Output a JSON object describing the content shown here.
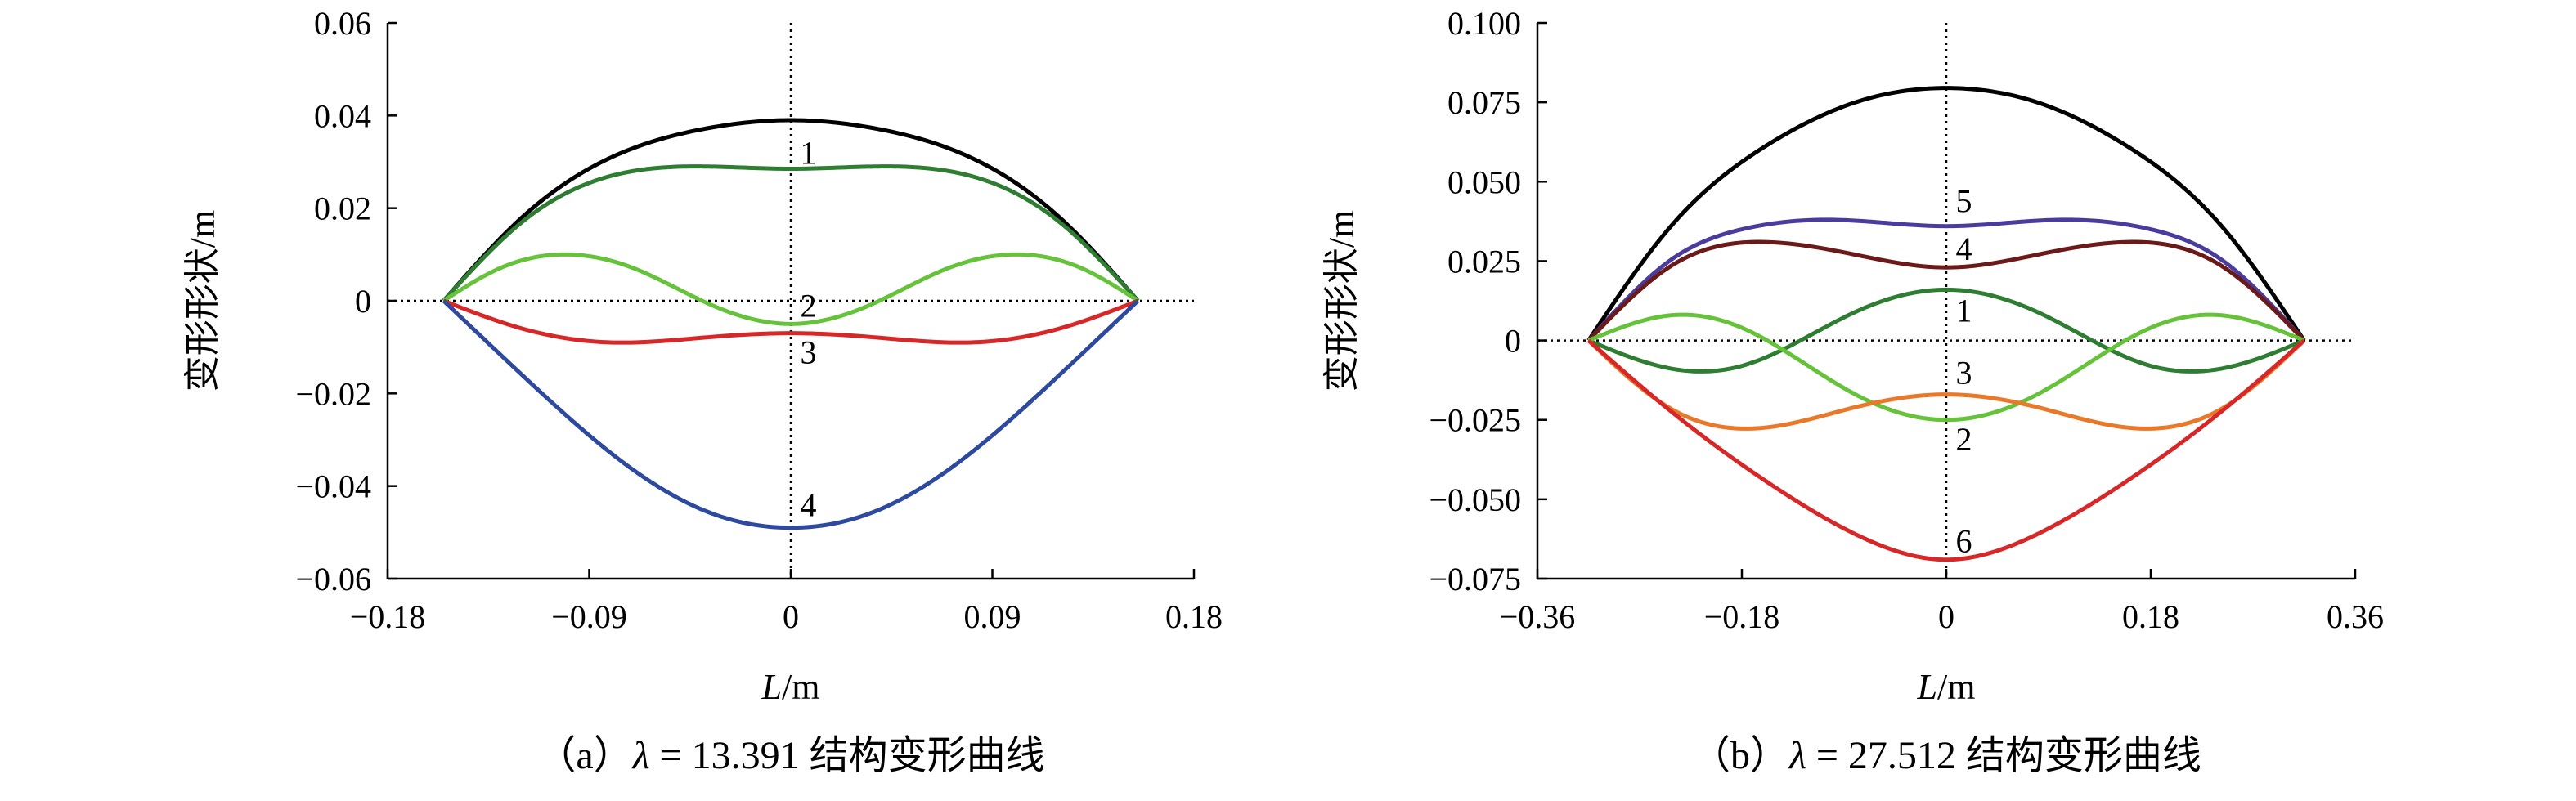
{
  "chart_data": [
    {
      "type": "line",
      "title": "",
      "xlabel": "L/m",
      "xlabel_italic": "L",
      "xlabel_unit": "/m",
      "ylabel": "变形形状/m",
      "caption_prefix": "（a）",
      "caption_lambda": "λ",
      "caption_value": " = 13.391 结构变形曲线",
      "xlim": [
        -0.18,
        0.18
      ],
      "ylim": [
        -0.06,
        0.06
      ],
      "xticks": [
        -0.18,
        -0.09,
        0,
        0.09,
        0.18
      ],
      "xtick_labels": [
        "−0.18",
        "−0.09",
        "0",
        "0.09",
        "0.18"
      ],
      "yticks": [
        0.06,
        0.04,
        0.02,
        0,
        -0.02,
        -0.04,
        -0.06
      ],
      "ytick_labels": [
        "0.06",
        "0.04",
        "0.02",
        "0",
        "−0.02",
        "−0.04",
        "−0.06"
      ],
      "x_span": [
        -0.155,
        0.155
      ],
      "series": [
        {
          "label": "",
          "color": "#000000",
          "x": [
            -0.155,
            -0.12,
            -0.08,
            -0.04,
            0,
            0.04,
            0.08,
            0.12,
            0.155
          ],
          "y": [
            0,
            0.018,
            0.031,
            0.037,
            0.039,
            0.037,
            0.031,
            0.018,
            0
          ]
        },
        {
          "label": "1",
          "color": "#2e7d32",
          "x": [
            -0.155,
            -0.12,
            -0.08,
            -0.04,
            0,
            0.04,
            0.08,
            0.12,
            0.155
          ],
          "y": [
            0,
            0.017,
            0.027,
            0.029,
            0.0285,
            0.029,
            0.027,
            0.017,
            0
          ]
        },
        {
          "label": "2",
          "color": "#66c23a",
          "x": [
            -0.155,
            -0.13,
            -0.1,
            -0.07,
            -0.035,
            0,
            0.035,
            0.07,
            0.1,
            0.13,
            0.155
          ],
          "y": [
            0,
            0.007,
            0.01,
            0.007,
            -0.001,
            -0.005,
            -0.001,
            0.007,
            0.01,
            0.007,
            0
          ]
        },
        {
          "label": "3",
          "color": "#d62828",
          "x": [
            -0.155,
            -0.12,
            -0.08,
            -0.04,
            0,
            0.04,
            0.08,
            0.12,
            0.155
          ],
          "y": [
            0,
            -0.006,
            -0.009,
            -0.008,
            -0.007,
            -0.008,
            -0.009,
            -0.006,
            0
          ]
        },
        {
          "label": "4",
          "color": "#2e4a9e",
          "x": [
            -0.155,
            -0.12,
            -0.08,
            -0.04,
            0,
            0.04,
            0.08,
            0.12,
            0.155
          ],
          "y": [
            0,
            -0.016,
            -0.033,
            -0.045,
            -0.049,
            -0.045,
            -0.033,
            -0.016,
            0
          ]
        }
      ],
      "curve_labels": [
        {
          "text": "1",
          "x": 0.002,
          "y": 0.032
        },
        {
          "text": "2",
          "x": 0.002,
          "y": -0.001
        },
        {
          "text": "3",
          "x": 0.002,
          "y": -0.011
        },
        {
          "text": "4",
          "x": 0.002,
          "y": -0.044
        }
      ]
    },
    {
      "type": "line",
      "title": "",
      "xlabel": "L/m",
      "xlabel_italic": "L",
      "xlabel_unit": "/m",
      "ylabel": "变形形状/m",
      "caption_prefix": "（b）",
      "caption_lambda": "λ",
      "caption_value": " = 27.512 结构变形曲线",
      "xlim": [
        -0.36,
        0.36
      ],
      "ylim": [
        -0.075,
        0.1
      ],
      "xticks": [
        -0.36,
        -0.18,
        0,
        0.18,
        0.36
      ],
      "xtick_labels": [
        "−0.36",
        "−0.18",
        "0",
        "0.18",
        "0.36"
      ],
      "yticks": [
        0.1,
        0.075,
        0.05,
        0.025,
        0,
        -0.025,
        -0.05,
        -0.075
      ],
      "ytick_labels": [
        "0.100",
        "0.075",
        "0.050",
        "0.025",
        "0",
        "−0.025",
        "−0.050",
        "−0.075"
      ],
      "x_span": [
        -0.315,
        0.315
      ],
      "series": [
        {
          "label": "",
          "color": "#000000",
          "x": [
            -0.315,
            -0.24,
            -0.16,
            -0.08,
            0,
            0.08,
            0.16,
            0.24,
            0.315
          ],
          "y": [
            0,
            0.037,
            0.061,
            0.075,
            0.0795,
            0.075,
            0.061,
            0.037,
            0
          ]
        },
        {
          "label": "5",
          "color": "#4a3c9c",
          "x": [
            -0.315,
            -0.24,
            -0.18,
            -0.1,
            0,
            0.1,
            0.18,
            0.24,
            0.315
          ],
          "y": [
            0,
            0.026,
            0.035,
            0.038,
            0.036,
            0.038,
            0.035,
            0.026,
            0
          ]
        },
        {
          "label": "4",
          "color": "#6b1a1a",
          "x": [
            -0.315,
            -0.24,
            -0.16,
            -0.08,
            0,
            0.08,
            0.16,
            0.24,
            0.315
          ],
          "y": [
            0,
            0.024,
            0.031,
            0.027,
            0.023,
            0.027,
            0.031,
            0.024,
            0
          ]
        },
        {
          "label": "1",
          "color": "#2e7d32",
          "x": [
            -0.315,
            -0.24,
            -0.18,
            -0.08,
            0,
            0.08,
            0.18,
            0.24,
            0.315
          ],
          "y": [
            0,
            -0.009,
            -0.008,
            0.009,
            0.016,
            0.009,
            -0.008,
            -0.009,
            0
          ]
        },
        {
          "label": "3",
          "color": "#66c23a",
          "x": [
            -0.315,
            -0.24,
            -0.18,
            -0.08,
            0,
            0.08,
            0.18,
            0.24,
            0.315
          ],
          "y": [
            0,
            0.008,
            0.004,
            -0.017,
            -0.025,
            -0.017,
            0.004,
            0.008,
            0
          ]
        },
        {
          "label": "2",
          "color": "#e8782a",
          "x": [
            -0.315,
            -0.24,
            -0.15,
            -0.08,
            0,
            0.08,
            0.15,
            0.24,
            0.315
          ],
          "y": [
            0,
            -0.022,
            -0.027,
            -0.021,
            -0.017,
            -0.021,
            -0.027,
            -0.022,
            0
          ]
        },
        {
          "label": "6",
          "color": "#d62828",
          "x": [
            -0.315,
            -0.24,
            -0.16,
            -0.08,
            0,
            0.08,
            0.16,
            0.24,
            0.315
          ],
          "y": [
            0,
            -0.023,
            -0.044,
            -0.061,
            -0.069,
            -0.061,
            -0.044,
            -0.023,
            0
          ]
        }
      ],
      "curve_labels": [
        {
          "text": "5",
          "x": 0.004,
          "y": 0.044
        },
        {
          "text": "4",
          "x": 0.004,
          "y": 0.029
        },
        {
          "text": "1",
          "x": 0.004,
          "y": 0.0095
        },
        {
          "text": "3",
          "x": 0.004,
          "y": -0.01
        },
        {
          "text": "2",
          "x": 0.004,
          "y": -0.031
        },
        {
          "text": "6",
          "x": 0.004,
          "y": -0.063
        }
      ]
    }
  ]
}
